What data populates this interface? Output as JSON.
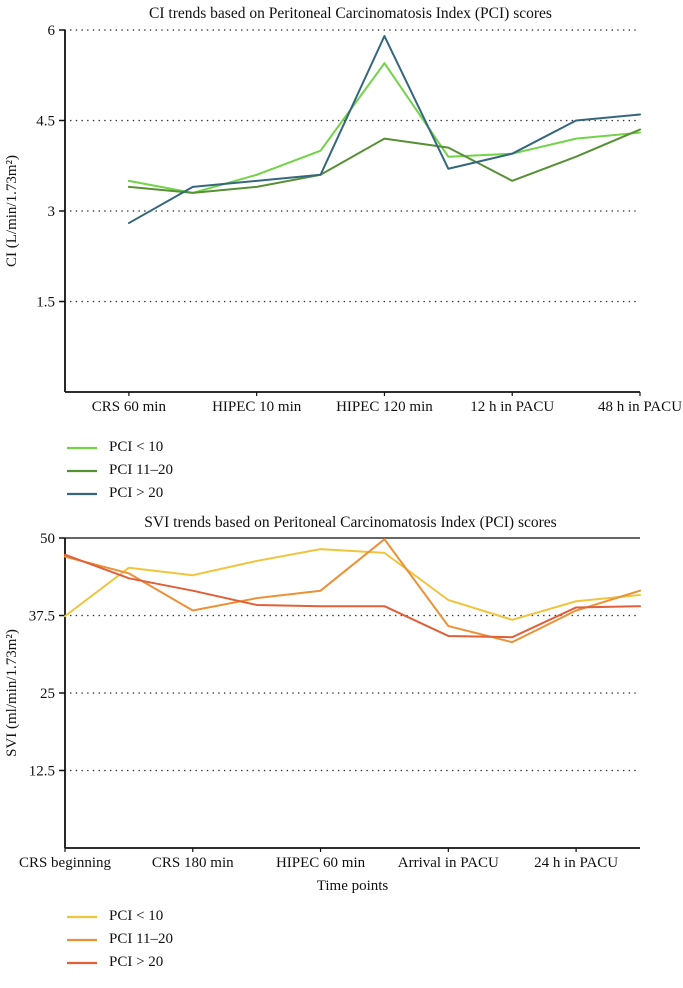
{
  "figure": {
    "background": "#ffffff"
  },
  "chart_data": [
    {
      "type": "line",
      "title": "CI trends based on Peritoneal Carcinomatosis Index (PCI) scores",
      "ylabel": "CI (L/min/1.73m²)",
      "xlabel": "",
      "ylim": [
        0,
        6
      ],
      "yticks": [
        1.5,
        3,
        4.5,
        6
      ],
      "ytick_labels": [
        "1.5",
        "3",
        "4.5",
        "6"
      ],
      "grid": "horizontal-dotted",
      "legend_position": "below-left",
      "x_slot_count": 10,
      "x_tick_positions": [
        1,
        3,
        5,
        7,
        9
      ],
      "x_tick_labels": [
        "CRS 60 min",
        "HIPEC 10 min",
        "HIPEC 120 min",
        "12 h in PACU",
        "48 h in PACU"
      ],
      "series": [
        {
          "id": "pci-lt-10",
          "name": "PCI < 10",
          "color": "#72d348",
          "x": [
            1,
            2,
            3,
            4,
            5,
            6,
            7,
            8,
            9
          ],
          "values": [
            3.5,
            3.3,
            3.6,
            4.0,
            5.45,
            3.9,
            3.95,
            4.2,
            4.3
          ]
        },
        {
          "id": "pci-11-20",
          "name": "PCI 11–20",
          "color": "#579035",
          "x": [
            1,
            2,
            3,
            4,
            5,
            6,
            7,
            8,
            9
          ],
          "values": [
            3.4,
            3.3,
            3.4,
            3.6,
            4.2,
            4.05,
            3.5,
            3.9,
            4.35
          ]
        },
        {
          "id": "pci-gt-20",
          "name": "PCI > 20",
          "color": "#35677e",
          "x": [
            1,
            2,
            3,
            4,
            5,
            6,
            7,
            8,
            9
          ],
          "values": [
            2.8,
            3.4,
            3.5,
            3.6,
            5.9,
            3.7,
            3.95,
            4.5,
            4.6
          ]
        }
      ]
    },
    {
      "type": "line",
      "title": "SVI trends based on Peritoneal Carcinomatosis Index (PCI) scores",
      "ylabel": "SVI (ml/min/1.73m²)",
      "xlabel": "Time points",
      "ylim": [
        0,
        50
      ],
      "yticks": [
        12.5,
        25,
        37.5,
        50
      ],
      "ytick_labels": [
        "12.5",
        "25",
        "37.5",
        "50"
      ],
      "grid": "horizontal-dotted",
      "legend_position": "below-left",
      "x_slot_count": 10,
      "x_tick_positions": [
        0,
        2,
        4,
        6,
        8
      ],
      "x_tick_labels": [
        "CRS beginning",
        "CRS 180 min",
        "HIPEC 60 min",
        "Arrival in PACU",
        "24 h in PACU"
      ],
      "series": [
        {
          "id": "pci-lt-10",
          "name": "PCI < 10",
          "color": "#f0c43c",
          "x": [
            0,
            1,
            2,
            3,
            4,
            5,
            6,
            7,
            8,
            9
          ],
          "values": [
            37.4,
            45.2,
            44.0,
            46.3,
            48.2,
            47.6,
            40.0,
            36.8,
            39.8,
            40.8
          ]
        },
        {
          "id": "pci-11-20",
          "name": "PCI 11–20",
          "color": "#ec9136",
          "x": [
            0,
            1,
            2,
            3,
            4,
            5,
            6,
            7,
            8,
            9
          ],
          "values": [
            47.0,
            44.3,
            38.3,
            40.3,
            41.5,
            49.8,
            35.8,
            33.2,
            38.3,
            41.5
          ]
        },
        {
          "id": "pci-gt-20",
          "name": "PCI > 20",
          "color": "#e0603a",
          "x": [
            0,
            1,
            2,
            3,
            4,
            5,
            6,
            7,
            8,
            9
          ],
          "values": [
            47.3,
            43.5,
            41.5,
            39.2,
            39.0,
            39.0,
            34.2,
            34.0,
            38.8,
            39.0
          ]
        }
      ]
    }
  ]
}
